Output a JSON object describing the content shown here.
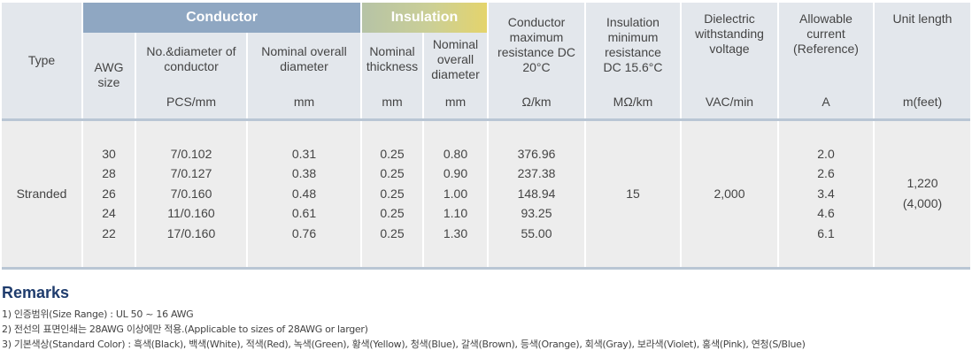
{
  "table": {
    "group_conductor": "Conductor",
    "group_insulation": "Insulation",
    "col_type": "Type",
    "col_awg": "AWG size",
    "col_no_diameter": "No.&diameter of conductor",
    "col_nominal_overall_diameter": "Nominal overall diameter",
    "col_nominal_thickness": "Nominal thickness",
    "col_ins_nominal_overall_diameter": "Nominal overall diameter",
    "col_conductor_resistance": "Conductor maximum resistance DC 20°C",
    "col_insulation_resistance": "Insulation minimum resistance DC 15.6°C",
    "col_dielectric": "Dielectric withstanding voltage",
    "col_allowable_current": "Allowable current (Reference)",
    "col_unit_length": "Unit length",
    "unit_no_diameter": "PCS/mm",
    "unit_overall_diameter": "mm",
    "unit_thickness": "mm",
    "unit_ins_diameter": "mm",
    "unit_resistance": "Ω/km",
    "unit_ins_resistance": "MΩ/km",
    "unit_dielectric": "VAC/min",
    "unit_current": "A",
    "unit_length": "m(feet)",
    "type_value": "Stranded",
    "awg": [
      "30",
      "28",
      "26",
      "24",
      "22"
    ],
    "no_diameter": [
      "7/0.102",
      "7/0.127",
      "7/0.160",
      "11/0.160",
      "17/0.160"
    ],
    "overall_diameter": [
      "0.31",
      "0.38",
      "0.48",
      "0.61",
      "0.76"
    ],
    "thickness": [
      "0.25",
      "0.25",
      "0.25",
      "0.25",
      "0.25"
    ],
    "ins_diameter": [
      "0.80",
      "0.90",
      "1.00",
      "1.10",
      "1.30"
    ],
    "resistance": [
      "376.96",
      "237.38",
      "148.94",
      "93.25",
      "55.00"
    ],
    "ins_resistance": "15",
    "dielectric": "2,000",
    "current": [
      "2.0",
      "2.6",
      "3.4",
      "4.6",
      "6.1"
    ],
    "unit_length_m": "1,220",
    "unit_length_ft": "(4,000)"
  },
  "remarks": {
    "title": "Remarks",
    "items": [
      "1) 인증범위(Size Range) : UL 50 ~ 16 AWG",
      "2) 전선의 표면인쇄는 28AWG 이상에만 적용.(Applicable to sizes of 28AWG or larger)",
      "3) 기본색상(Standard Color) : 흑색(Black), 백색(White), 적색(Red), 녹색(Green), 황색(Yellow), 청색(Blue), 갈색(Brown), 등색(Orange), 회색(Gray), 보라색(Violet), 홍색(Pink), 연청(S/Blue)"
    ]
  }
}
